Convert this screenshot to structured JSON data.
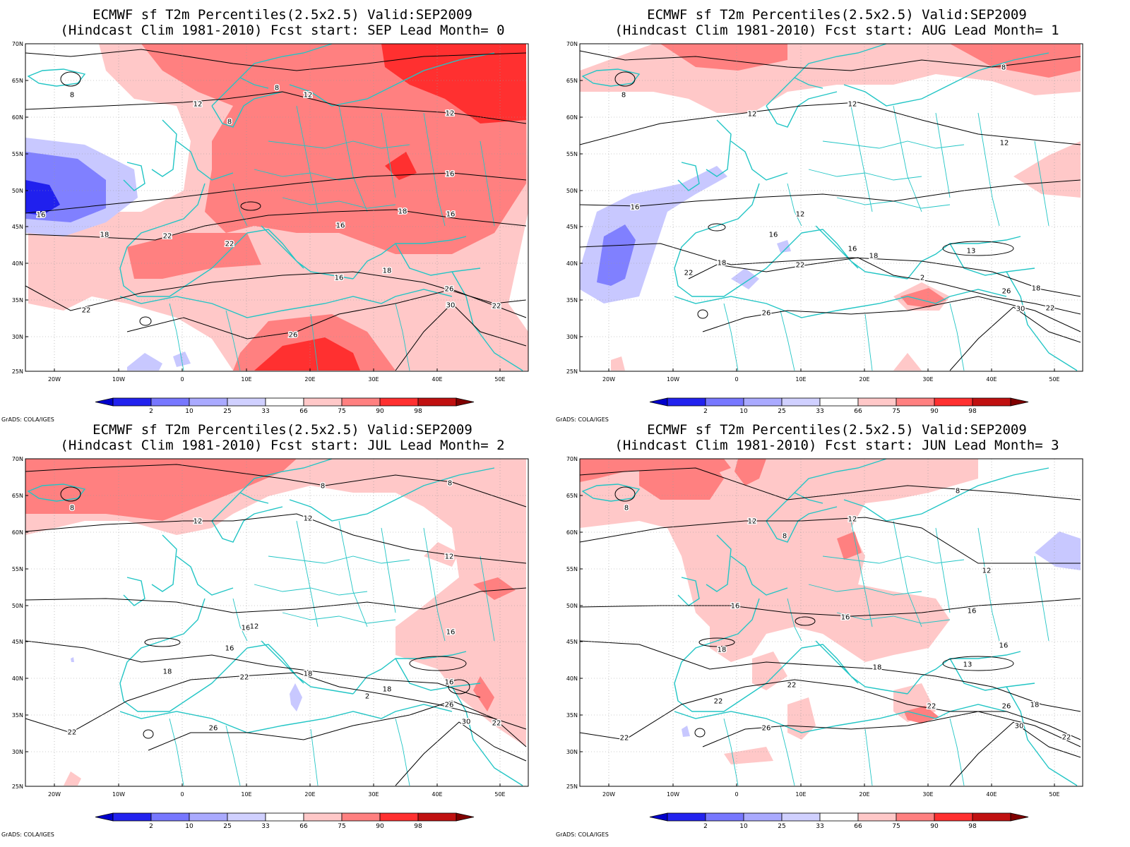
{
  "credit": "GrADS: COLA/IGES",
  "axes": {
    "lat_labels": [
      "70N",
      "65N",
      "60N",
      "55N",
      "50N",
      "45N",
      "40N",
      "35N",
      "30N",
      "25N"
    ],
    "lon_labels": [
      "20W",
      "10W",
      "0",
      "10E",
      "20E",
      "30E",
      "40E",
      "50E"
    ]
  },
  "colorbar": {
    "labels": [
      "2",
      "10",
      "25",
      "33",
      "66",
      "75",
      "90",
      "98"
    ],
    "colors": [
      "#0000cc",
      "#2222ee",
      "#7777ff",
      "#aaaaff",
      "#d0d0ff",
      "#ffffff",
      "#ffc8c8",
      "#ff8080",
      "#ff3030",
      "#c01010",
      "#800000"
    ]
  },
  "colors": {
    "coast": "#22c5c5",
    "contour": "#000000",
    "red1": "#ffc8c8",
    "red2": "#ff8080",
    "red3": "#ff3030",
    "blue1": "#c8c8ff",
    "blue2": "#8080ff",
    "blue3": "#2020ee"
  },
  "panels": [
    {
      "title1": "ECMWF sf T2m Percentiles(2.5x2.5) Valid:SEP2009",
      "title2": "(Hindcast Clim 1981-2010) Fcst start: SEP  Lead Month= 0",
      "contour_labels": [
        "8",
        "12",
        "8",
        "12",
        "8",
        "12",
        "16",
        "18",
        "16",
        "16",
        "18",
        "16",
        "18",
        "22",
        "22",
        "16",
        "22",
        "26",
        "30",
        "22",
        "26"
      ]
    },
    {
      "title1": "ECMWF sf T2m Percentiles(2.5x2.5) Valid:SEP2009",
      "title2": "(Hindcast Clim 1981-2010) Fcst start: AUG  Lead Month= 1",
      "contour_labels": [
        "8",
        "8",
        "12",
        "12",
        "12",
        "16",
        "12",
        "16",
        "16",
        "18",
        "18",
        "22",
        "22",
        "13",
        "18",
        "26",
        "30",
        "22",
        "2",
        "26"
      ]
    },
    {
      "title1": "ECMWF sf T2m Percentiles(2.5x2.5) Valid:SEP2009",
      "title2": "(Hindcast Clim 1981-2010) Fcst start: JUL  Lead Month= 2",
      "contour_labels": [
        "8",
        "12",
        "8",
        "12",
        "8",
        "12",
        "16",
        "12",
        "16",
        "18",
        "18",
        "22",
        "22",
        "26",
        "16",
        "16",
        "18",
        "26",
        "30",
        "22",
        "2"
      ]
    },
    {
      "title1": "ECMWF sf T2m Percentiles(2.5x2.5) Valid:SEP2009",
      "title2": "(Hindcast Clim 1981-2010) Fcst start: JUN  Lead Month= 3",
      "contour_labels": [
        "8",
        "12",
        "8",
        "8",
        "12",
        "12",
        "16",
        "16",
        "16",
        "18",
        "18",
        "22",
        "22",
        "13",
        "16",
        "22",
        "26",
        "22",
        "26",
        "30",
        "18",
        "22"
      ]
    }
  ]
}
